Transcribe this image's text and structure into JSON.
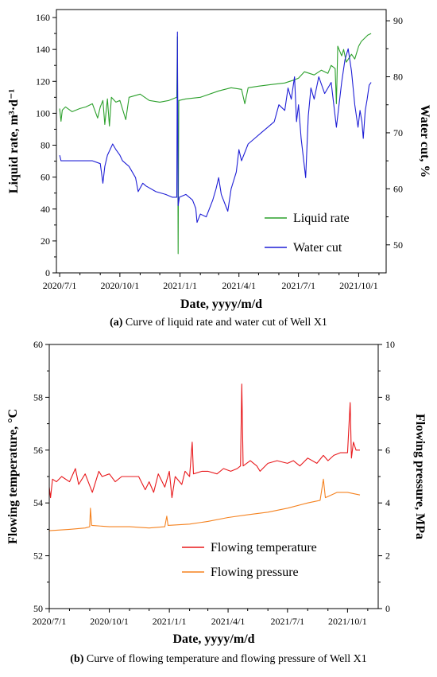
{
  "chart_data": [
    {
      "type": "line",
      "x_ticks": [
        "2020/7/1",
        "2020/10/1",
        "2021/1/1",
        "2021/4/1",
        "2021/7/1",
        "2021/10/1"
      ],
      "xlabel": "Date, yyyy/m/d",
      "ylabel_left": "Liquid rate, m³·d⁻¹",
      "ylabel_right": "Water cut, %",
      "ylim_left": [
        0,
        165
      ],
      "ylim_right": [
        45,
        92
      ],
      "yticks_left": [
        "0",
        "20",
        "40",
        "60",
        "80",
        "100",
        "120",
        "140",
        "160"
      ],
      "yticks_right": [
        "50",
        "60",
        "70",
        "80",
        "90"
      ],
      "legend_position": "bottom-right",
      "caption_tag": "(a)",
      "caption_text": " Curve of liquid rate and water cut of Well X1",
      "series": [
        {
          "name": "Liquid rate",
          "color": "#2ca02c",
          "axis": "left",
          "points": [
            [
              "2020-07-01",
              103
            ],
            [
              "2020-07-03",
              95
            ],
            [
              "2020-07-05",
              102
            ],
            [
              "2020-07-10",
              104
            ],
            [
              "2020-07-20",
              101
            ],
            [
              "2020-08-01",
              103
            ],
            [
              "2020-08-10",
              104
            ],
            [
              "2020-08-20",
              106
            ],
            [
              "2020-08-28",
              97
            ],
            [
              "2020-09-01",
              104
            ],
            [
              "2020-09-05",
              108
            ],
            [
              "2020-09-08",
              93
            ],
            [
              "2020-09-12",
              109
            ],
            [
              "2020-09-15",
              92
            ],
            [
              "2020-09-18",
              110
            ],
            [
              "2020-09-25",
              107
            ],
            [
              "2020-10-01",
              108
            ],
            [
              "2020-10-10",
              96
            ],
            [
              "2020-10-15",
              110
            ],
            [
              "2020-11-01",
              112
            ],
            [
              "2020-11-15",
              108
            ],
            [
              "2020-12-01",
              107
            ],
            [
              "2020-12-15",
              108
            ],
            [
              "2020-12-27",
              110
            ],
            [
              "2020-12-28",
              148
            ],
            [
              "2020-12-29",
              12
            ],
            [
              "2020-12-30",
              108
            ],
            [
              "2021-01-10",
              109
            ],
            [
              "2021-02-01",
              110
            ],
            [
              "2021-03-01",
              114
            ],
            [
              "2021-03-20",
              116
            ],
            [
              "2021-04-05",
              115
            ],
            [
              "2021-04-10",
              106
            ],
            [
              "2021-04-15",
              116
            ],
            [
              "2021-05-01",
              117
            ],
            [
              "2021-05-20",
              118
            ],
            [
              "2021-06-10",
              119
            ],
            [
              "2021-06-25",
              121
            ],
            [
              "2021-07-01",
              122
            ],
            [
              "2021-07-10",
              126
            ],
            [
              "2021-07-25",
              124
            ],
            [
              "2021-08-05",
              127
            ],
            [
              "2021-08-15",
              125
            ],
            [
              "2021-08-20",
              130
            ],
            [
              "2021-08-26",
              128
            ],
            [
              "2021-08-28",
              106
            ],
            [
              "2021-08-30",
              142
            ],
            [
              "2021-09-05",
              136
            ],
            [
              "2021-09-08",
              140
            ],
            [
              "2021-09-12",
              132
            ],
            [
              "2021-09-20",
              137
            ],
            [
              "2021-09-25",
              134
            ],
            [
              "2021-10-01",
              142
            ],
            [
              "2021-10-05",
              145
            ],
            [
              "2021-10-10",
              147
            ],
            [
              "2021-10-15",
              149
            ],
            [
              "2021-10-20",
              150
            ]
          ]
        },
        {
          "name": "Water cut",
          "color": "#1f1fd6",
          "axis": "right",
          "points": [
            [
              "2020-07-01",
              66
            ],
            [
              "2020-07-03",
              65
            ],
            [
              "2020-07-15",
              65
            ],
            [
              "2020-08-01",
              65
            ],
            [
              "2020-08-20",
              65
            ],
            [
              "2020-09-01",
              64.5
            ],
            [
              "2020-09-05",
              61
            ],
            [
              "2020-09-08",
              64
            ],
            [
              "2020-09-12",
              66
            ],
            [
              "2020-09-20",
              68
            ],
            [
              "2020-09-25",
              67
            ],
            [
              "2020-10-01",
              66
            ],
            [
              "2020-10-05",
              65
            ],
            [
              "2020-10-15",
              64
            ],
            [
              "2020-10-25",
              62
            ],
            [
              "2020-10-29",
              59.5
            ],
            [
              "2020-11-05",
              61
            ],
            [
              "2020-11-10",
              60.5
            ],
            [
              "2020-11-25",
              59.5
            ],
            [
              "2020-12-10",
              59
            ],
            [
              "2020-12-20",
              58.5
            ],
            [
              "2020-12-27",
              58.5
            ],
            [
              "2020-12-28",
              88
            ],
            [
              "2020-12-29",
              57
            ],
            [
              "2020-12-31",
              58.5
            ],
            [
              "2021-01-10",
              59
            ],
            [
              "2021-01-20",
              58
            ],
            [
              "2021-01-25",
              56.5
            ],
            [
              "2021-01-27",
              54
            ],
            [
              "2021-02-01",
              55.5
            ],
            [
              "2021-02-10",
              55
            ],
            [
              "2021-02-20",
              58
            ],
            [
              "2021-02-25",
              60
            ],
            [
              "2021-03-01",
              62
            ],
            [
              "2021-03-05",
              59
            ],
            [
              "2021-03-10",
              57.5
            ],
            [
              "2021-03-15",
              56
            ],
            [
              "2021-03-20",
              60
            ],
            [
              "2021-03-28",
              63
            ],
            [
              "2021-04-01",
              67
            ],
            [
              "2021-04-05",
              65
            ],
            [
              "2021-04-15",
              68
            ],
            [
              "2021-04-25",
              69
            ],
            [
              "2021-05-05",
              70
            ],
            [
              "2021-05-15",
              71
            ],
            [
              "2021-05-25",
              72
            ],
            [
              "2021-06-01",
              75
            ],
            [
              "2021-06-10",
              74
            ],
            [
              "2021-06-15",
              78
            ],
            [
              "2021-06-20",
              76
            ],
            [
              "2021-06-25",
              80
            ],
            [
              "2021-06-28",
              72
            ],
            [
              "2021-07-01",
              75
            ],
            [
              "2021-07-05",
              69
            ],
            [
              "2021-07-10",
              64
            ],
            [
              "2021-07-12",
              62
            ],
            [
              "2021-07-16",
              73
            ],
            [
              "2021-07-20",
              78
            ],
            [
              "2021-07-25",
              76
            ],
            [
              "2021-08-01",
              80
            ],
            [
              "2021-08-10",
              77
            ],
            [
              "2021-08-20",
              79
            ],
            [
              "2021-08-28",
              71
            ],
            [
              "2021-09-01",
              75
            ],
            [
              "2021-09-05",
              79
            ],
            [
              "2021-09-10",
              83
            ],
            [
              "2021-09-15",
              85
            ],
            [
              "2021-09-20",
              81
            ],
            [
              "2021-09-25",
              75
            ],
            [
              "2021-09-30",
              71
            ],
            [
              "2021-10-03",
              74
            ],
            [
              "2021-10-06",
              72
            ],
            [
              "2021-10-08",
              69
            ],
            [
              "2021-10-11",
              74
            ],
            [
              "2021-10-14",
              76
            ],
            [
              "2021-10-17",
              78.5
            ],
            [
              "2021-10-20",
              79
            ]
          ]
        }
      ]
    },
    {
      "type": "line",
      "x_ticks": [
        "2020/7/1",
        "2020/10/1",
        "2021/1/1",
        "2021/4/1",
        "2021/7/1",
        "2021/10/1"
      ],
      "xlabel": "Date, yyyy/m/d",
      "ylabel_left": "Flowing temperature, °C",
      "ylabel_right": "Flowing pressure, MPa",
      "ylim_left": [
        50,
        60
      ],
      "ylim_right": [
        0,
        10
      ],
      "yticks_left": [
        "50",
        "52",
        "54",
        "56",
        "58",
        "60"
      ],
      "yticks_right": [
        "0",
        "2",
        "4",
        "6",
        "8",
        "10"
      ],
      "legend_position": "bottom-right",
      "caption_tag": "(b)",
      "caption_text": " Curve of flowing temperature and flowing pressure of Well X1",
      "series": [
        {
          "name": "Flowing temperature",
          "color": "#e8191c",
          "axis": "left",
          "points": [
            [
              "2020-07-01",
              54.6
            ],
            [
              "2020-07-03",
              54.2
            ],
            [
              "2020-07-06",
              54.9
            ],
            [
              "2020-07-12",
              54.8
            ],
            [
              "2020-07-20",
              55.0
            ],
            [
              "2020-08-01",
              54.8
            ],
            [
              "2020-08-10",
              55.3
            ],
            [
              "2020-08-15",
              54.7
            ],
            [
              "2020-08-25",
              55.1
            ],
            [
              "2020-09-05",
              54.4
            ],
            [
              "2020-09-15",
              55.2
            ],
            [
              "2020-09-20",
              55.0
            ],
            [
              "2020-10-01",
              55.1
            ],
            [
              "2020-10-10",
              54.8
            ],
            [
              "2020-10-20",
              55.0
            ],
            [
              "2020-11-01",
              55.0
            ],
            [
              "2020-11-15",
              55.0
            ],
            [
              "2020-11-25",
              54.5
            ],
            [
              "2020-12-01",
              54.8
            ],
            [
              "2020-12-08",
              54.4
            ],
            [
              "2020-12-15",
              55.1
            ],
            [
              "2020-12-25",
              54.6
            ],
            [
              "2021-01-01",
              55.2
            ],
            [
              "2021-01-05",
              54.2
            ],
            [
              "2021-01-10",
              55.0
            ],
            [
              "2021-01-20",
              54.7
            ],
            [
              "2021-01-25",
              55.2
            ],
            [
              "2021-02-01",
              55.0
            ],
            [
              "2021-02-05",
              56.3
            ],
            [
              "2021-02-07",
              55.1
            ],
            [
              "2021-02-20",
              55.2
            ],
            [
              "2021-03-01",
              55.2
            ],
            [
              "2021-03-15",
              55.1
            ],
            [
              "2021-03-25",
              55.3
            ],
            [
              "2021-04-05",
              55.2
            ],
            [
              "2021-04-15",
              55.3
            ],
            [
              "2021-04-20",
              55.4
            ],
            [
              "2021-04-22",
              58.5
            ],
            [
              "2021-04-24",
              55.4
            ],
            [
              "2021-05-05",
              55.6
            ],
            [
              "2021-05-15",
              55.4
            ],
            [
              "2021-05-20",
              55.2
            ],
            [
              "2021-06-01",
              55.5
            ],
            [
              "2021-06-15",
              55.6
            ],
            [
              "2021-07-01",
              55.5
            ],
            [
              "2021-07-10",
              55.6
            ],
            [
              "2021-07-20",
              55.4
            ],
            [
              "2021-08-01",
              55.7
            ],
            [
              "2021-08-15",
              55.5
            ],
            [
              "2021-08-25",
              55.8
            ],
            [
              "2021-09-01",
              55.6
            ],
            [
              "2021-09-10",
              55.8
            ],
            [
              "2021-09-20",
              55.9
            ],
            [
              "2021-10-01",
              55.9
            ],
            [
              "2021-10-05",
              57.8
            ],
            [
              "2021-10-07",
              55.7
            ],
            [
              "2021-10-10",
              56.3
            ],
            [
              "2021-10-14",
              56.0
            ],
            [
              "2021-10-20",
              56.0
            ]
          ]
        },
        {
          "name": "Flowing pressure",
          "color": "#f5821f",
          "axis": "right",
          "points": [
            [
              "2020-07-01",
              2.95
            ],
            [
              "2020-08-01",
              3.0
            ],
            [
              "2020-08-25",
              3.05
            ],
            [
              "2020-09-01",
              3.1
            ],
            [
              "2020-09-02",
              3.8
            ],
            [
              "2020-09-04",
              3.15
            ],
            [
              "2020-10-01",
              3.1
            ],
            [
              "2020-11-01",
              3.1
            ],
            [
              "2020-12-01",
              3.05
            ],
            [
              "2020-12-25",
              3.1
            ],
            [
              "2020-12-28",
              3.5
            ],
            [
              "2020-12-30",
              3.15
            ],
            [
              "2021-02-01",
              3.2
            ],
            [
              "2021-03-01",
              3.3
            ],
            [
              "2021-04-01",
              3.45
            ],
            [
              "2021-05-01",
              3.55
            ],
            [
              "2021-06-01",
              3.65
            ],
            [
              "2021-07-01",
              3.8
            ],
            [
              "2021-08-01",
              4.0
            ],
            [
              "2021-08-20",
              4.1
            ],
            [
              "2021-08-25",
              4.9
            ],
            [
              "2021-08-28",
              4.2
            ],
            [
              "2021-09-15",
              4.4
            ],
            [
              "2021-10-01",
              4.4
            ],
            [
              "2021-10-20",
              4.3
            ]
          ]
        }
      ]
    }
  ]
}
